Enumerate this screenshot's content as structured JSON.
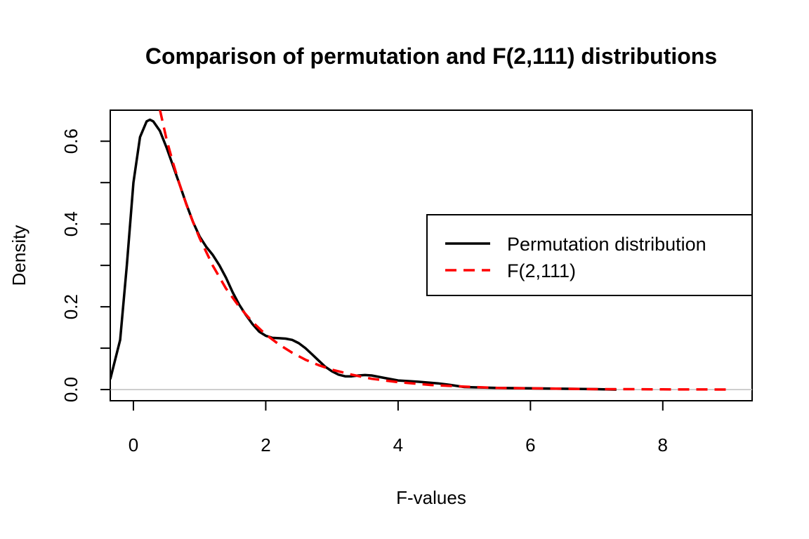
{
  "chart_data": {
    "type": "line",
    "title": "Comparison of permutation and F(2,111) distributions",
    "xlabel": "F-values",
    "ylabel": "Density",
    "xlim": [
      -0.35,
      9.35
    ],
    "ylim": [
      -0.027,
      0.675
    ],
    "x_ticks": [
      0,
      2,
      4,
      6,
      8
    ],
    "x_tick_labels": [
      "0",
      "2",
      "4",
      "6",
      "8"
    ],
    "y_ticks": [
      0.0,
      0.1,
      0.2,
      0.3,
      0.4,
      0.5,
      0.6
    ],
    "y_tick_labels": [
      "0.0",
      "",
      "0.2",
      "",
      "0.4",
      "",
      "0.6"
    ],
    "grid": false,
    "legend_position": "right",
    "zero_line": true,
    "series": [
      {
        "name": "Permutation distribution",
        "color": "#000000",
        "style": "solid",
        "x": [
          -0.35,
          -0.2,
          -0.1,
          0.0,
          0.1,
          0.2,
          0.25,
          0.3,
          0.4,
          0.5,
          0.6,
          0.7,
          0.8,
          0.9,
          1.0,
          1.1,
          1.2,
          1.3,
          1.4,
          1.5,
          1.6,
          1.7,
          1.8,
          1.9,
          2.0,
          2.1,
          2.2,
          2.3,
          2.4,
          2.5,
          2.6,
          2.7,
          2.8,
          2.9,
          3.0,
          3.1,
          3.2,
          3.3,
          3.4,
          3.5,
          3.6,
          3.8,
          4.0,
          4.3,
          4.6,
          4.8,
          5.0,
          5.5,
          6.0,
          6.5,
          7.0,
          7.3
        ],
        "values": [
          0.025,
          0.12,
          0.3,
          0.5,
          0.61,
          0.648,
          0.652,
          0.648,
          0.625,
          0.585,
          0.54,
          0.495,
          0.448,
          0.405,
          0.37,
          0.345,
          0.325,
          0.3,
          0.27,
          0.235,
          0.205,
          0.18,
          0.158,
          0.14,
          0.13,
          0.125,
          0.124,
          0.123,
          0.12,
          0.112,
          0.1,
          0.085,
          0.07,
          0.055,
          0.044,
          0.036,
          0.032,
          0.032,
          0.034,
          0.035,
          0.034,
          0.028,
          0.022,
          0.019,
          0.015,
          0.011,
          0.006,
          0.004,
          0.003,
          0.002,
          0.001,
          0.0
        ]
      },
      {
        "name": "F(2,111)",
        "color": "#ff0000",
        "style": "dashed",
        "x": [
          0.4,
          0.5,
          0.6,
          0.7,
          0.8,
          0.9,
          1.0,
          1.2,
          1.4,
          1.6,
          1.8,
          2.0,
          2.2,
          2.4,
          2.6,
          2.8,
          3.0,
          3.3,
          3.6,
          4.0,
          4.5,
          5.0,
          5.5,
          6.0,
          6.5,
          7.0,
          7.5,
          8.0,
          8.5,
          9.0
        ],
        "values": [
          0.676,
          0.605,
          0.547,
          0.495,
          0.447,
          0.405,
          0.366,
          0.299,
          0.244,
          0.2,
          0.163,
          0.133,
          0.109,
          0.089,
          0.072,
          0.059,
          0.048,
          0.036,
          0.026,
          0.018,
          0.011,
          0.007,
          0.004,
          0.003,
          0.002,
          0.001,
          0.001,
          0.0005,
          0.0003,
          0.0002
        ]
      }
    ]
  }
}
